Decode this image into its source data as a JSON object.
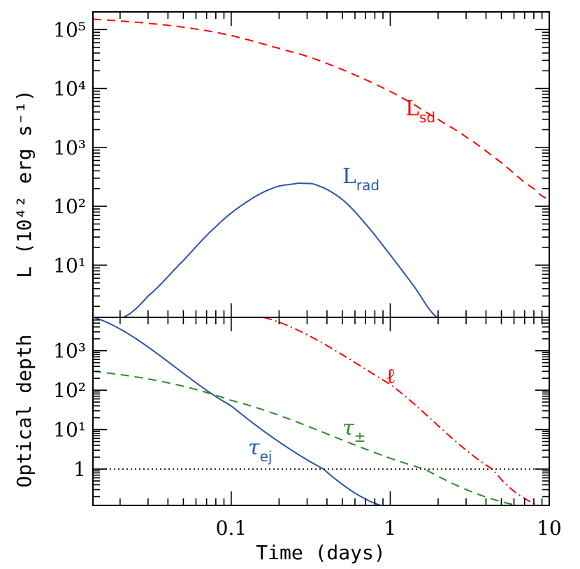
{
  "chart_data": [
    {
      "type": "line",
      "panel": "top",
      "xscale": "log",
      "yscale": "log",
      "xlim": [
        0.0135,
        10
      ],
      "ylim": [
        1.3,
        200000
      ],
      "ylabel": "L (10⁴² erg s⁻¹)",
      "yticks": [
        {
          "value": 10,
          "label": "10¹"
        },
        {
          "value": 100,
          "label": "10²"
        },
        {
          "value": 1000,
          "label": "10³"
        },
        {
          "value": 10000,
          "label": "10⁴"
        },
        {
          "value": 100000,
          "label": "10⁵"
        }
      ],
      "series": [
        {
          "name": "Lsd",
          "label_main": "L",
          "label_sub": "sd",
          "color": "#ff0000",
          "style": "dashed",
          "x": [
            0.0135,
            0.02,
            0.03,
            0.05,
            0.08,
            0.12,
            0.2,
            0.3,
            0.5,
            0.8,
            1.2,
            2.0,
            3.0,
            5.0,
            8.0,
            10
          ],
          "y": [
            150000,
            140000,
            128000,
            110000,
            90000,
            70000,
            48000,
            35000,
            21000,
            12000,
            6800,
            3000,
            1500,
            550,
            200,
            130
          ]
        },
        {
          "name": "Lrad",
          "label_main": "L",
          "label_sub": "rad",
          "color": "#2a55a8",
          "style": "solid",
          "x": [
            0.021,
            0.03,
            0.05,
            0.08,
            0.12,
            0.18,
            0.25,
            0.28,
            0.35,
            0.5,
            0.7,
            1.0,
            1.4,
            1.97
          ],
          "y": [
            1.3,
            3,
            12,
            45,
            110,
            200,
            240,
            245,
            225,
            130,
            50,
            15,
            4.5,
            1.3
          ]
        }
      ]
    },
    {
      "type": "line",
      "panel": "bottom",
      "xscale": "log",
      "yscale": "log",
      "xlim": [
        0.0135,
        10
      ],
      "ylim": [
        0.12,
        7000
      ],
      "xlabel": "Time (days)",
      "ylabel": "Optical depth",
      "xticks": [
        {
          "value": 0.1,
          "label": "0.1"
        },
        {
          "value": 1,
          "label": "1"
        },
        {
          "value": 10,
          "label": "10"
        }
      ],
      "yticks": [
        {
          "value": 1,
          "label": "1"
        },
        {
          "value": 10,
          "label": "10¹"
        },
        {
          "value": 100,
          "label": "10²"
        },
        {
          "value": 1000,
          "label": "10³"
        }
      ],
      "series": [
        {
          "name": "τej",
          "label_main": "τ",
          "label_sub": "ej",
          "color": "#2a55a8",
          "style": "solid",
          "x": [
            0.0137,
            0.1,
            0.38,
            0.87
          ],
          "y": [
            7000,
            40,
            1,
            0.12
          ]
        },
        {
          "name": "τ±",
          "label_main": "τ",
          "label_sub": "±",
          "color": "#2a8a2a",
          "style": "dashed",
          "x": [
            0.0135,
            0.1,
            1.65,
            6.3
          ],
          "y": [
            300,
            55,
            1,
            0.12
          ]
        },
        {
          "name": "ℓ",
          "label_main": "ℓ",
          "label_sub": "",
          "color": "#ff0000",
          "style": "dashdot",
          "x": [
            0.16,
            1.0,
            4.4,
            8.6
          ],
          "y": [
            7000,
            140,
            1,
            0.12
          ]
        },
        {
          "name": "τ=1",
          "color": "#000000",
          "style": "dotted",
          "x": [
            0.0135,
            10
          ],
          "y": [
            1,
            1
          ]
        }
      ]
    }
  ]
}
